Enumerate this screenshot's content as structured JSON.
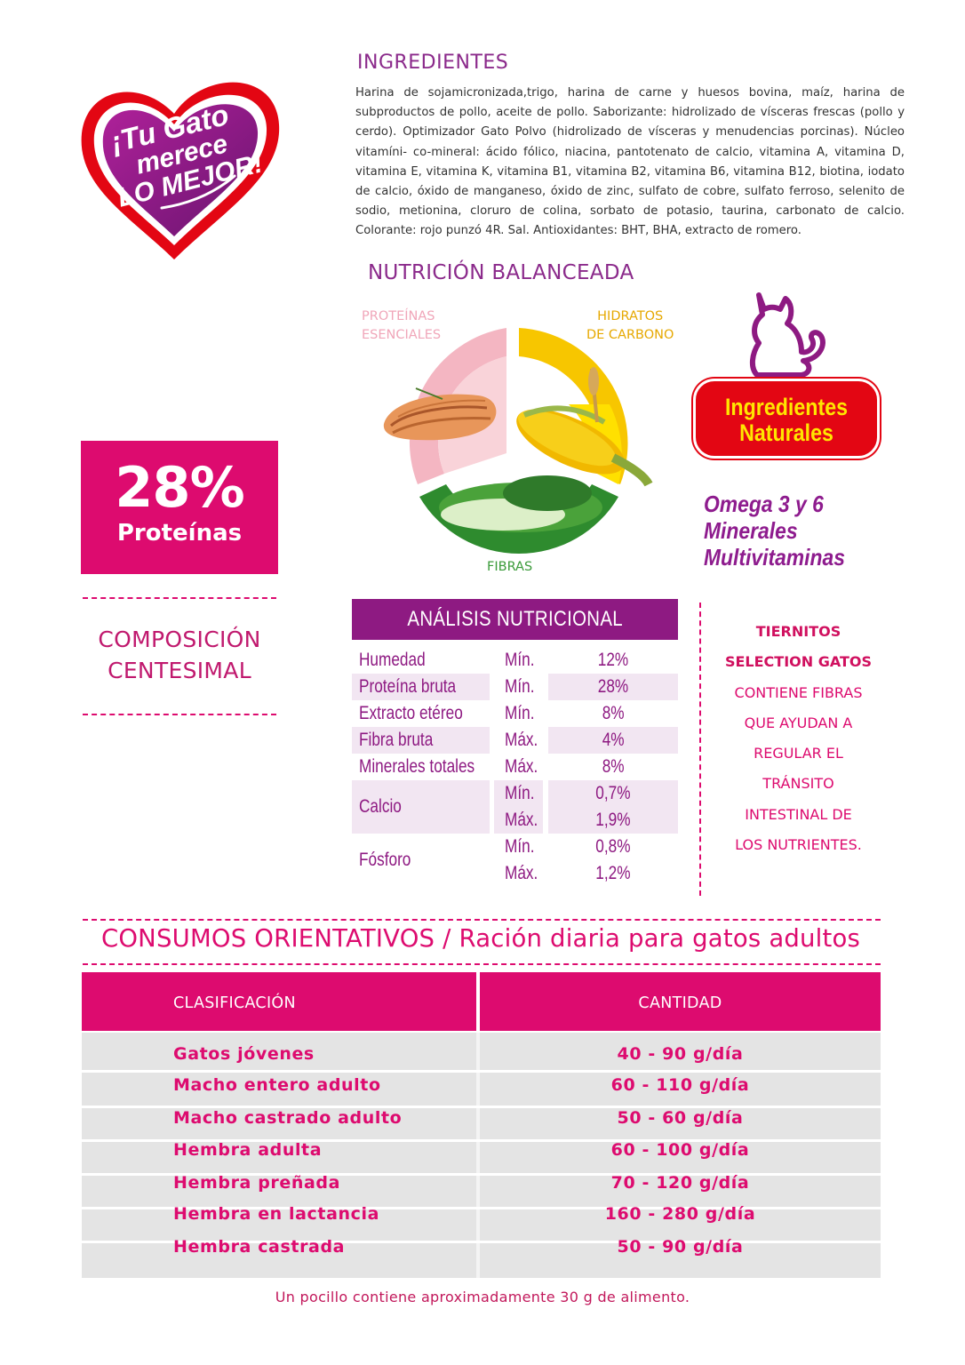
{
  "logo": {
    "line1": "¡Tu Gato",
    "line2": "merece",
    "line3": "LO MEJOR!"
  },
  "ingredients": {
    "title": "INGREDIENTES",
    "text": "Harina de sojamicronizada,trigo, harina de carne y huesos bovina, maíz, harina de subproductos de pollo, aceite de pollo. Saborizante: hidrolizado de vísceras frescas (pollo y cerdo). Optimizador Gato Polvo (hidrolizado de vísceras y menudencias porcinas). Núcleo vitamíni- co-mineral: ácido fólico, niacina, pantotenato de calcio, vitamina A, vitamina D, vitamina E, vitamina K, vitamina B1, vitamina B2, vitamina B6, vitamina B12, biotina, iodato de calcio, óxido de manganeso, óxido de zinc, sulfato de cobre, sulfato ferroso, selenito de sodio, metionina, cloruro de colina, sorbato de potasio, taurina, carbonato de calcio. Colorante: rojo punzó 4R. Sal. Antioxidantes: BHT, BHA, extracto de romero."
  },
  "nutrition": {
    "title": "NUTRICIÓN BALANCEADA",
    "proteins_line1": "PROTEÍNAS",
    "proteins_line2": "ESENCIALES",
    "carbs_line1": "HIDRATOS",
    "carbs_line2": "DE CARBONO",
    "fiber": "FIBRAS",
    "colors": {
      "proteins": "#f4b6c2",
      "carbs": "#f7c600",
      "fiber": "#2e8b2e"
    }
  },
  "badge": {
    "line1": "Ingredientes",
    "line2": "Naturales"
  },
  "omega": {
    "line1": "Omega 3 y 6",
    "line2": "Minerales",
    "line3": "Multivitaminas"
  },
  "protein_box": {
    "percent": "28%",
    "label": "Proteínas"
  },
  "composition": {
    "line1": "COMPOSICIÓN",
    "line2": "CENTESIMAL"
  },
  "analysis": {
    "title": "ANÁLISIS NUTRICIONAL",
    "rows": [
      {
        "name": "Humedad",
        "mm": "Mín.",
        "val": "12%"
      },
      {
        "name": "Proteína bruta",
        "mm": "Mín.",
        "val": "28%"
      },
      {
        "name": "Extracto etéreo",
        "mm": "Mín.",
        "val": "8%"
      },
      {
        "name": "Fibra bruta",
        "mm": "Máx.",
        "val": "4%"
      },
      {
        "name": "Minerales totales",
        "mm": "Máx.",
        "val": "8%"
      },
      {
        "name": "Calcio",
        "mm": "Mín.",
        "val": "0,7%",
        "mm2": "Máx.",
        "val2": "1,9%"
      },
      {
        "name": "Fósforo",
        "mm": "Mín.",
        "val": "0,8%",
        "mm2": "Máx.",
        "val2": "1,2%"
      }
    ]
  },
  "tiernitos": {
    "line1": "TIERNITOS",
    "line2": "SELECTION GATOS",
    "line3": "CONTIENE FIBRAS",
    "line4": "QUE AYUDAN A",
    "line5": "REGULAR EL",
    "line6": "TRÁNSITO",
    "line7": "INTESTINAL DE",
    "line8": "LOS NUTRIENTES."
  },
  "consumption": {
    "title": "CONSUMOS ORIENTATIVOS / Ración diaria para gatos adultos",
    "header_class": "CLASIFICACIÓN",
    "header_qty": "CANTIDAD",
    "rows": [
      {
        "label": "Gatos jóvenes",
        "qty": "40 - 90 g/día"
      },
      {
        "label": "Macho entero adulto",
        "qty": "60 - 110 g/día"
      },
      {
        "label": "Macho castrado adulto",
        "qty": "50 - 60 g/día"
      },
      {
        "label": "Hembra adulta",
        "qty": "60 - 100 g/día"
      },
      {
        "label": "Hembra preñada",
        "qty": "70 - 120 g/día"
      },
      {
        "label": "Hembra en lactancia",
        "qty": "160 - 280 g/día"
      },
      {
        "label": "Hembra castrada",
        "qty": "50 - 90 g/día"
      }
    ],
    "note": "Un pocillo contiene aproximadamente 30 g de alimento."
  }
}
